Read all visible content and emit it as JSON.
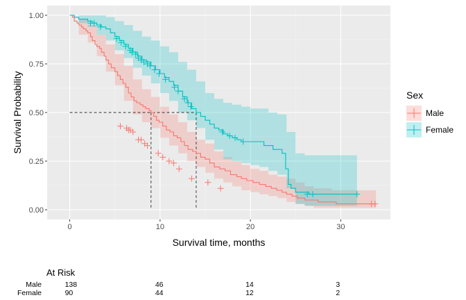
{
  "chart_data": {
    "type": "line",
    "subtype": "kaplan-meier",
    "xlabel": "Survival time, months",
    "ylabel": "Survival Probability",
    "xlim": [
      -2.5,
      35.5
    ],
    "ylim": [
      -0.05,
      1.05
    ],
    "xticks": [
      0,
      10,
      20,
      30
    ],
    "xtick_labels": [
      "0",
      "10",
      "20",
      "30"
    ],
    "yticks": [
      0,
      0.25,
      0.5,
      0.75,
      1.0
    ],
    "ytick_labels": [
      "0.00",
      "0.25",
      "0.50",
      "0.75",
      "1.00"
    ],
    "grid": true,
    "legend": {
      "title": "Sex",
      "placement": "right"
    },
    "median_survival": {
      "level": 0.5,
      "male": 9,
      "female": 14
    },
    "series": [
      {
        "name": "Male",
        "color": "#F8766D",
        "fill": "#F8766D",
        "steps": [
          [
            0,
            1.0
          ],
          [
            0.3,
            0.99
          ],
          [
            0.5,
            0.97
          ],
          [
            0.8,
            0.96
          ],
          [
            1.0,
            0.95
          ],
          [
            1.3,
            0.94
          ],
          [
            1.5,
            0.93
          ],
          [
            1.8,
            0.92
          ],
          [
            2.0,
            0.91
          ],
          [
            2.3,
            0.89
          ],
          [
            2.5,
            0.87
          ],
          [
            2.8,
            0.85
          ],
          [
            3.0,
            0.84
          ],
          [
            3.3,
            0.83
          ],
          [
            3.5,
            0.81
          ],
          [
            3.8,
            0.79
          ],
          [
            4.0,
            0.77
          ],
          [
            4.3,
            0.75
          ],
          [
            4.6,
            0.73
          ],
          [
            5.0,
            0.71
          ],
          [
            5.3,
            0.69
          ],
          [
            5.6,
            0.67
          ],
          [
            5.9,
            0.65
          ],
          [
            6.2,
            0.63
          ],
          [
            6.5,
            0.6
          ],
          [
            6.8,
            0.58
          ],
          [
            7.1,
            0.56
          ],
          [
            7.4,
            0.55
          ],
          [
            7.8,
            0.54
          ],
          [
            8.1,
            0.53
          ],
          [
            8.4,
            0.52
          ],
          [
            8.8,
            0.51
          ],
          [
            9.0,
            0.5
          ],
          [
            9.3,
            0.48
          ],
          [
            9.6,
            0.46
          ],
          [
            9.9,
            0.45
          ],
          [
            10.3,
            0.43
          ],
          [
            10.7,
            0.41
          ],
          [
            11.1,
            0.4
          ],
          [
            11.5,
            0.38
          ],
          [
            11.9,
            0.37
          ],
          [
            12.3,
            0.35
          ],
          [
            12.7,
            0.33
          ],
          [
            13.1,
            0.31
          ],
          [
            13.6,
            0.3
          ],
          [
            14.0,
            0.29
          ],
          [
            14.5,
            0.27
          ],
          [
            15.0,
            0.26
          ],
          [
            15.5,
            0.24
          ],
          [
            16.0,
            0.22
          ],
          [
            16.6,
            0.21
          ],
          [
            17.2,
            0.2
          ],
          [
            17.8,
            0.18
          ],
          [
            18.5,
            0.17
          ],
          [
            19.0,
            0.16
          ],
          [
            19.6,
            0.15
          ],
          [
            20.3,
            0.14
          ],
          [
            21.0,
            0.13
          ],
          [
            21.7,
            0.12
          ],
          [
            22.3,
            0.11
          ],
          [
            22.9,
            0.1
          ],
          [
            23.5,
            0.09
          ],
          [
            24.0,
            0.08
          ],
          [
            24.6,
            0.07
          ],
          [
            25.2,
            0.06
          ],
          [
            26.0,
            0.05
          ],
          [
            27.5,
            0.04
          ],
          [
            29.5,
            0.03
          ],
          [
            33.9,
            0.03
          ]
        ],
        "upper": [
          [
            0,
            1.0
          ],
          [
            1,
            0.98
          ],
          [
            2,
            0.95
          ],
          [
            3,
            0.9
          ],
          [
            4,
            0.85
          ],
          [
            5,
            0.8
          ],
          [
            6,
            0.74
          ],
          [
            7,
            0.67
          ],
          [
            8,
            0.62
          ],
          [
            9,
            0.58
          ],
          [
            10,
            0.53
          ],
          [
            11,
            0.49
          ],
          [
            12,
            0.45
          ],
          [
            13,
            0.4
          ],
          [
            14,
            0.36
          ],
          [
            15,
            0.34
          ],
          [
            16,
            0.3
          ],
          [
            17,
            0.27
          ],
          [
            18,
            0.25
          ],
          [
            19,
            0.23
          ],
          [
            20,
            0.21
          ],
          [
            21,
            0.2
          ],
          [
            22,
            0.18
          ],
          [
            23,
            0.17
          ],
          [
            24,
            0.16
          ],
          [
            25,
            0.14
          ],
          [
            26,
            0.12
          ],
          [
            27,
            0.11
          ],
          [
            29,
            0.1
          ],
          [
            30,
            0.1
          ],
          [
            33.9,
            0.12
          ]
        ],
        "lower": [
          [
            0,
            1.0
          ],
          [
            1,
            0.9
          ],
          [
            2,
            0.86
          ],
          [
            3,
            0.79
          ],
          [
            4,
            0.71
          ],
          [
            5,
            0.64
          ],
          [
            6,
            0.56
          ],
          [
            7,
            0.49
          ],
          [
            8,
            0.45
          ],
          [
            9,
            0.42
          ],
          [
            10,
            0.37
          ],
          [
            11,
            0.33
          ],
          [
            12,
            0.29
          ],
          [
            13,
            0.25
          ],
          [
            14,
            0.22
          ],
          [
            15,
            0.19
          ],
          [
            16,
            0.16
          ],
          [
            17,
            0.14
          ],
          [
            18,
            0.12
          ],
          [
            19,
            0.1
          ],
          [
            20,
            0.09
          ],
          [
            21,
            0.08
          ],
          [
            22,
            0.07
          ],
          [
            23,
            0.06
          ],
          [
            24,
            0.04
          ],
          [
            25,
            0.03
          ],
          [
            26,
            0.02
          ],
          [
            27,
            0.01
          ],
          [
            33.9,
            0.01
          ]
        ],
        "censored": [
          [
            5.6,
            0.43
          ],
          [
            6.3,
            0.42
          ],
          [
            6.5,
            0.41
          ],
          [
            6.7,
            0.41
          ],
          [
            7.0,
            0.4
          ],
          [
            7.6,
            0.36
          ],
          [
            7.9,
            0.36
          ],
          [
            8.3,
            0.34
          ],
          [
            8.6,
            0.33
          ],
          [
            9.8,
            0.29
          ],
          [
            10.3,
            0.27
          ],
          [
            11.0,
            0.25
          ],
          [
            11.5,
            0.24
          ],
          [
            12.1,
            0.21
          ],
          [
            13.5,
            0.16
          ],
          [
            15.3,
            0.14
          ],
          [
            16.7,
            0.11
          ],
          [
            33.4,
            0.03
          ],
          [
            33.8,
            0.03
          ]
        ]
      },
      {
        "name": "Female",
        "color": "#00BFC4",
        "fill": "#00BFC4",
        "steps": [
          [
            0,
            1.0
          ],
          [
            0.5,
            0.99
          ],
          [
            1.0,
            0.98
          ],
          [
            2.0,
            0.97
          ],
          [
            2.5,
            0.96
          ],
          [
            3.0,
            0.95
          ],
          [
            3.5,
            0.94
          ],
          [
            4.0,
            0.93
          ],
          [
            4.5,
            0.91
          ],
          [
            5.0,
            0.89
          ],
          [
            5.5,
            0.87
          ],
          [
            6.0,
            0.85
          ],
          [
            6.5,
            0.83
          ],
          [
            7.0,
            0.81
          ],
          [
            7.5,
            0.79
          ],
          [
            8.0,
            0.77
          ],
          [
            8.5,
            0.76
          ],
          [
            9.0,
            0.74
          ],
          [
            9.5,
            0.72
          ],
          [
            10.0,
            0.7
          ],
          [
            10.5,
            0.68
          ],
          [
            11.0,
            0.66
          ],
          [
            11.5,
            0.64
          ],
          [
            12.0,
            0.61
          ],
          [
            12.5,
            0.58
          ],
          [
            13.0,
            0.55
          ],
          [
            13.5,
            0.52
          ],
          [
            14.0,
            0.5
          ],
          [
            14.5,
            0.48
          ],
          [
            15.0,
            0.46
          ],
          [
            15.5,
            0.44
          ],
          [
            16.0,
            0.42
          ],
          [
            16.5,
            0.41
          ],
          [
            17.0,
            0.39
          ],
          [
            17.5,
            0.38
          ],
          [
            18.0,
            0.37
          ],
          [
            18.5,
            0.36
          ],
          [
            19.0,
            0.35
          ],
          [
            20.0,
            0.35
          ],
          [
            21.0,
            0.35
          ],
          [
            21.5,
            0.33
          ],
          [
            22.5,
            0.31
          ],
          [
            23.5,
            0.29
          ],
          [
            23.9,
            0.21
          ],
          [
            24.2,
            0.13
          ],
          [
            24.5,
            0.11
          ],
          [
            25.0,
            0.09
          ],
          [
            26.5,
            0.08
          ],
          [
            31.8,
            0.08
          ]
        ],
        "upper": [
          [
            0,
            1.0
          ],
          [
            1,
            1.0
          ],
          [
            2,
            1.0
          ],
          [
            3,
            1.0
          ],
          [
            4,
            0.99
          ],
          [
            5,
            0.97
          ],
          [
            6,
            0.95
          ],
          [
            7,
            0.92
          ],
          [
            8,
            0.89
          ],
          [
            9,
            0.87
          ],
          [
            10,
            0.84
          ],
          [
            11,
            0.81
          ],
          [
            12,
            0.76
          ],
          [
            13,
            0.72
          ],
          [
            14,
            0.66
          ],
          [
            15,
            0.6
          ],
          [
            16,
            0.57
          ],
          [
            17,
            0.55
          ],
          [
            18,
            0.54
          ],
          [
            19,
            0.53
          ],
          [
            20,
            0.52
          ],
          [
            21,
            0.52
          ],
          [
            22,
            0.5
          ],
          [
            23,
            0.49
          ],
          [
            24,
            0.4
          ],
          [
            25,
            0.29
          ],
          [
            26,
            0.28
          ],
          [
            31.8,
            0.28
          ]
        ],
        "lower": [
          [
            0,
            1.0
          ],
          [
            1,
            0.96
          ],
          [
            2,
            0.94
          ],
          [
            3,
            0.9
          ],
          [
            4,
            0.87
          ],
          [
            5,
            0.82
          ],
          [
            6,
            0.78
          ],
          [
            7,
            0.73
          ],
          [
            8,
            0.69
          ],
          [
            9,
            0.65
          ],
          [
            10,
            0.6
          ],
          [
            11,
            0.56
          ],
          [
            12,
            0.5
          ],
          [
            13,
            0.46
          ],
          [
            14,
            0.42
          ],
          [
            15,
            0.36
          ],
          [
            16,
            0.31
          ],
          [
            17,
            0.26
          ],
          [
            18,
            0.25
          ],
          [
            19,
            0.24
          ],
          [
            20,
            0.23
          ],
          [
            21,
            0.22
          ],
          [
            22,
            0.2
          ],
          [
            23,
            0.18
          ],
          [
            24,
            0.11
          ],
          [
            25,
            0.03
          ],
          [
            26,
            0.02
          ],
          [
            31.8,
            0.02
          ]
        ],
        "censored": [
          [
            2.3,
            0.96
          ],
          [
            2.7,
            0.96
          ],
          [
            3.4,
            0.94
          ],
          [
            5.2,
            0.88
          ],
          [
            5.7,
            0.86
          ],
          [
            6.2,
            0.84
          ],
          [
            6.7,
            0.82
          ],
          [
            6.9,
            0.81
          ],
          [
            7.3,
            0.8
          ],
          [
            7.6,
            0.78
          ],
          [
            7.9,
            0.77
          ],
          [
            8.2,
            0.76
          ],
          [
            8.6,
            0.75
          ],
          [
            8.9,
            0.74
          ],
          [
            9.4,
            0.72
          ],
          [
            9.9,
            0.7
          ],
          [
            10.6,
            0.67
          ],
          [
            11.6,
            0.63
          ],
          [
            12.0,
            0.61
          ],
          [
            12.7,
            0.57
          ],
          [
            13.1,
            0.55
          ],
          [
            13.4,
            0.53
          ],
          [
            16.9,
            0.4
          ],
          [
            17.7,
            0.38
          ],
          [
            18.3,
            0.37
          ],
          [
            19.2,
            0.35
          ],
          [
            26.3,
            0.08
          ],
          [
            26.9,
            0.08
          ],
          [
            31.8,
            0.08
          ]
        ]
      }
    ]
  },
  "risk_table": {
    "title": "At Risk",
    "times": [
      0,
      10,
      20,
      30
    ],
    "rows": [
      {
        "label": "Male",
        "counts": [
          "138",
          "46",
          "14",
          "3"
        ]
      },
      {
        "label": "Female",
        "counts": [
          "90",
          "44",
          "12",
          "2"
        ]
      }
    ]
  }
}
